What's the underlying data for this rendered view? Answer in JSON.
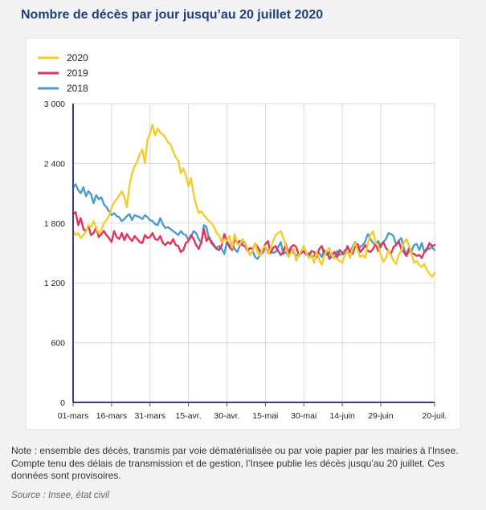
{
  "title": "Nombre de décès par jour jusqu’au 20 juillet 2020",
  "note": "Note : ensemble des décès, transmis par voie dématérialisée ou par voie papier par les mairies à l'Insee. Compte tenu des délais de transmission et de gestion, l’Insee publie les décès jusqu’au 20 juillet. Ces données sont provisoires.",
  "source": "Source : Insee, état civil",
  "chart_data": {
    "type": "line",
    "title": "Nombre de décès par jour jusqu’au 20 juillet 2020",
    "xlabel": "",
    "ylabel": "",
    "ylim": [
      0,
      3000
    ],
    "yticks": [
      0,
      600,
      1200,
      1800,
      2400,
      3000
    ],
    "ytick_labels": [
      "0",
      "600",
      "1 200",
      "1 800",
      "2 400",
      "3 000"
    ],
    "xticks": [
      {
        "day": 0,
        "label": "01-mars"
      },
      {
        "day": 15,
        "label": "16-mars"
      },
      {
        "day": 30,
        "label": "31-mars"
      },
      {
        "day": 45,
        "label": "15-avr."
      },
      {
        "day": 60,
        "label": "30-avr."
      },
      {
        "day": 75,
        "label": "15-mai"
      },
      {
        "day": 90,
        "label": "30-mai"
      },
      {
        "day": 105,
        "label": "14-juin"
      },
      {
        "day": 120,
        "label": "29-juin"
      },
      {
        "day": 141,
        "label": "20-juil."
      }
    ],
    "x": "daily, 01-mars to 20-juil. (day 0 = 01-mars, day 141 = 20-juil.); each value is one day",
    "grid": true,
    "legend_position": "top-left",
    "series": [
      {
        "name": "2020",
        "color": "#f5cc2e",
        "values": [
          1720,
          1680,
          1700,
          1650,
          1680,
          1710,
          1780,
          1760,
          1820,
          1750,
          1700,
          1730,
          1800,
          1830,
          1870,
          1950,
          2010,
          2040,
          2080,
          2120,
          2060,
          1960,
          2180,
          2300,
          2370,
          2420,
          2490,
          2540,
          2400,
          2640,
          2700,
          2790,
          2680,
          2750,
          2710,
          2690,
          2660,
          2610,
          2590,
          2520,
          2460,
          2430,
          2300,
          2350,
          2280,
          2170,
          2250,
          2090,
          1980,
          1900,
          1920,
          1880,
          1850,
          1820,
          1800,
          1760,
          1700,
          1680,
          1600,
          1640,
          1620,
          1670,
          1550,
          1690,
          1590,
          1580,
          1640,
          1610,
          1530,
          1480,
          1520,
          1600,
          1500,
          1470,
          1550,
          1570,
          1490,
          1540,
          1620,
          1680,
          1700,
          1720,
          1650,
          1570,
          1460,
          1500,
          1540,
          1420,
          1480,
          1520,
          1570,
          1500,
          1450,
          1480,
          1400,
          1510,
          1430,
          1380,
          1480,
          1520,
          1550,
          1470,
          1450,
          1440,
          1420,
          1400,
          1480,
          1520,
          1450,
          1540,
          1600,
          1530,
          1460,
          1480,
          1450,
          1600,
          1680,
          1720,
          1600,
          1570,
          1480,
          1410,
          1450,
          1530,
          1480,
          1420,
          1390,
          1480,
          1520,
          1600,
          1640,
          1580,
          1490,
          1400,
          1420,
          1380,
          1360,
          1390,
          1330,
          1290,
          1260,
          1300
        ]
      },
      {
        "name": "2019",
        "color": "#e2335a",
        "values": [
          1890,
          1910,
          1780,
          1850,
          1740,
          1720,
          1770,
          1680,
          1700,
          1760,
          1660,
          1690,
          1720,
          1680,
          1650,
          1610,
          1720,
          1660,
          1640,
          1700,
          1630,
          1690,
          1650,
          1620,
          1670,
          1640,
          1610,
          1600,
          1680,
          1650,
          1660,
          1700,
          1640,
          1630,
          1670,
          1600,
          1580,
          1610,
          1590,
          1640,
          1580,
          1570,
          1510,
          1530,
          1600,
          1620,
          1680,
          1640,
          1580,
          1540,
          1610,
          1740,
          1620,
          1660,
          1600,
          1570,
          1540,
          1530,
          1580,
          1690,
          1610,
          1560,
          1530,
          1640,
          1600,
          1620,
          1580,
          1570,
          1520,
          1550,
          1540,
          1590,
          1560,
          1510,
          1530,
          1590,
          1620,
          1500,
          1550,
          1570,
          1520,
          1480,
          1510,
          1590,
          1500,
          1560,
          1580,
          1560,
          1480,
          1500,
          1520,
          1490,
          1470,
          1520,
          1510,
          1460,
          1540,
          1570,
          1480,
          1520,
          1440,
          1480,
          1510,
          1460,
          1530,
          1500,
          1480,
          1570,
          1510,
          1490,
          1570,
          1590,
          1510,
          1540,
          1580,
          1520,
          1510,
          1540,
          1590,
          1520,
          1580,
          1610,
          1550,
          1520,
          1490,
          1560,
          1580,
          1620,
          1540,
          1510,
          1470,
          1550,
          1500,
          1490,
          1470,
          1480,
          1450,
          1510,
          1530,
          1600,
          1570,
          1580
        ]
      },
      {
        "name": "2018",
        "color": "#4a9ccc",
        "values": [
          2160,
          2190,
          2130,
          2100,
          2160,
          2070,
          2120,
          2090,
          2000,
          2080,
          2040,
          2060,
          1990,
          1960,
          1920,
          1880,
          1900,
          1870,
          1860,
          1820,
          1840,
          1870,
          1890,
          1830,
          1880,
          1870,
          1860,
          1840,
          1880,
          1860,
          1830,
          1820,
          1790,
          1780,
          1850,
          1790,
          1750,
          1760,
          1740,
          1720,
          1700,
          1680,
          1720,
          1690,
          1680,
          1630,
          1660,
          1720,
          1700,
          1640,
          1600,
          1780,
          1760,
          1640,
          1620,
          1580,
          1550,
          1570,
          1540,
          1490,
          1620,
          1570,
          1600,
          1540,
          1510,
          1570,
          1600,
          1610,
          1540,
          1480,
          1520,
          1460,
          1440,
          1490,
          1500,
          1560,
          1520,
          1530,
          1500,
          1510,
          1560,
          1610,
          1490,
          1510,
          1470,
          1540,
          1500,
          1480,
          1470,
          1520,
          1510,
          1480,
          1500,
          1460,
          1470,
          1490,
          1500,
          1460,
          1530,
          1480,
          1510,
          1460,
          1450,
          1520,
          1480,
          1490,
          1530,
          1500,
          1510,
          1560,
          1610,
          1540,
          1560,
          1580,
          1620,
          1690,
          1640,
          1600,
          1580,
          1620,
          1560,
          1610,
          1640,
          1700,
          1690,
          1670,
          1580,
          1620,
          1650,
          1550,
          1480,
          1510,
          1520,
          1580,
          1590,
          1530,
          1600,
          1510,
          1550,
          1540,
          1560,
          1530
        ]
      }
    ]
  }
}
